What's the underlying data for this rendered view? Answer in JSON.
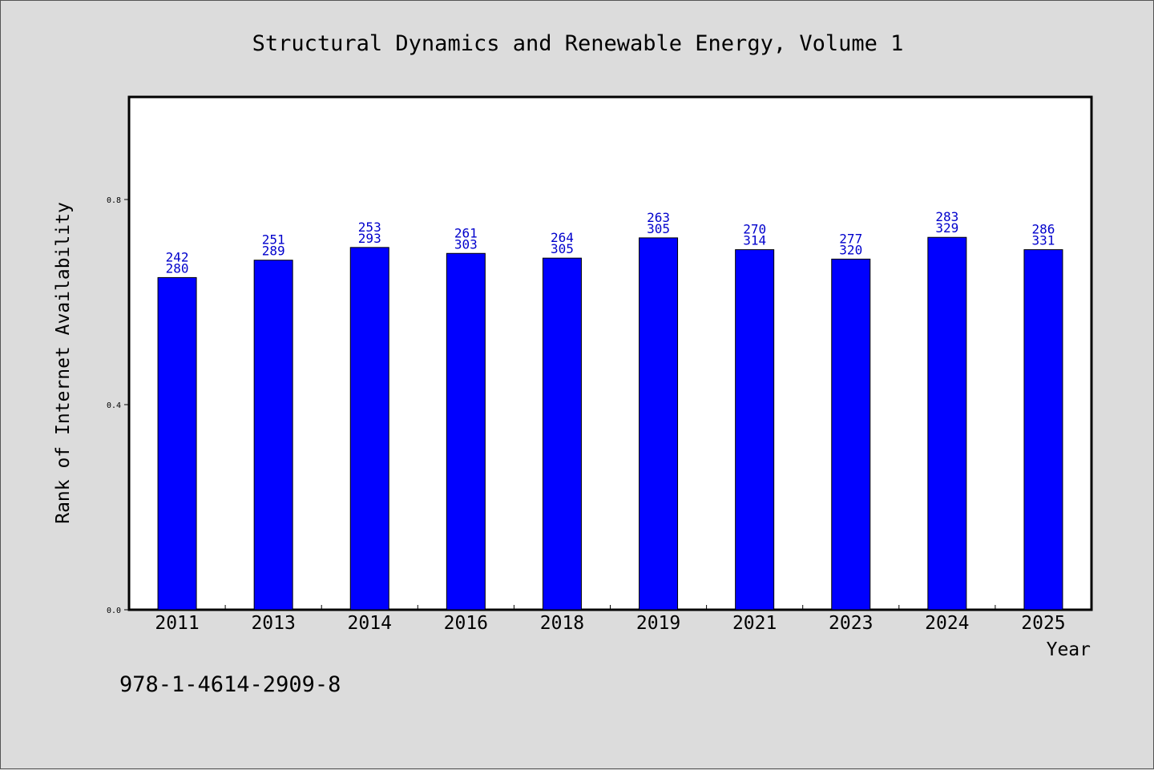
{
  "chart_data": {
    "type": "bar",
    "title": "Structural Dynamics and Renewable Energy, Volume 1",
    "xlabel": "Year",
    "ylabel": "Rank of Internet Availability",
    "categories": [
      "2011",
      "2013",
      "2014",
      "2016",
      "2018",
      "2019",
      "2021",
      "2023",
      "2024",
      "2025"
    ],
    "values": [
      0.6478,
      0.6817,
      0.7065,
      0.6949,
      0.6857,
      0.7252,
      0.7022,
      0.6838,
      0.7262,
      0.7022
    ],
    "bar_labels_top": [
      "242",
      "251",
      "253",
      "261",
      "264",
      "263",
      "270",
      "277",
      "283",
      "286"
    ],
    "bar_labels_bottom": [
      "280",
      "289",
      "293",
      "303",
      "305",
      "305",
      "314",
      "320",
      "329",
      "331"
    ],
    "ylim": [
      0.0,
      1.0
    ],
    "yticks": [
      0.0,
      0.4,
      0.8
    ],
    "ytick_labels": [
      "0.0",
      "0.4",
      "0.8"
    ],
    "grid": false,
    "bar_color": "#0000ff",
    "label_color": "#0000cc",
    "background_color": "#dcdcdc",
    "plot_background_color": "#ffffff"
  },
  "footer": {
    "isbn": "978-1-4614-2909-8"
  }
}
